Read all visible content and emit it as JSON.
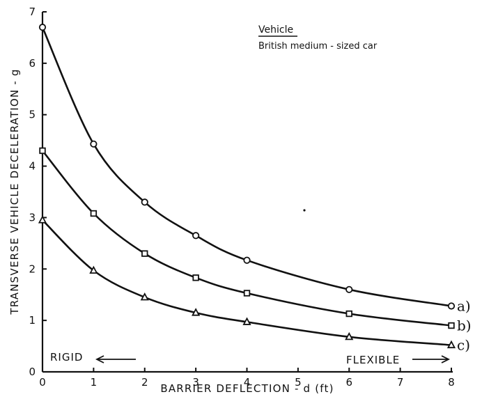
{
  "chart_data": {
    "type": "line",
    "xlabel": "BARRIER DEFLECTION - d (ft)",
    "ylabel": "TRANSVERSE VEHICLE DECELERATION - g",
    "xlim": [
      0,
      8
    ],
    "ylim": [
      0,
      7
    ],
    "x_ticks": [
      "0",
      "1",
      "2",
      "3",
      "4",
      "5",
      "6",
      "7",
      "8"
    ],
    "y_ticks": [
      "0",
      "1",
      "2",
      "3",
      "4",
      "5",
      "6",
      "7"
    ],
    "grid": false,
    "legend_title": "Vehicle",
    "legend_text": "British medium - sized car",
    "legend_position": "top-right",
    "annotations": {
      "left": "RIGID",
      "right": "FLEXIBLE"
    },
    "series": [
      {
        "name": "a)",
        "marker": "circle",
        "x": [
          0,
          1,
          2,
          3,
          4,
          6,
          8
        ],
        "y": [
          6.7,
          4.43,
          3.3,
          2.65,
          2.17,
          1.6,
          1.28
        ]
      },
      {
        "name": "b)",
        "marker": "square",
        "x": [
          0,
          1,
          2,
          3,
          4,
          6,
          8
        ],
        "y": [
          4.3,
          3.08,
          2.3,
          1.83,
          1.53,
          1.13,
          0.9
        ]
      },
      {
        "name": "c)",
        "marker": "triangle",
        "x": [
          0,
          1,
          2,
          3,
          4,
          6,
          8
        ],
        "y": [
          2.95,
          1.97,
          1.45,
          1.15,
          0.97,
          0.68,
          0.52
        ]
      }
    ]
  }
}
